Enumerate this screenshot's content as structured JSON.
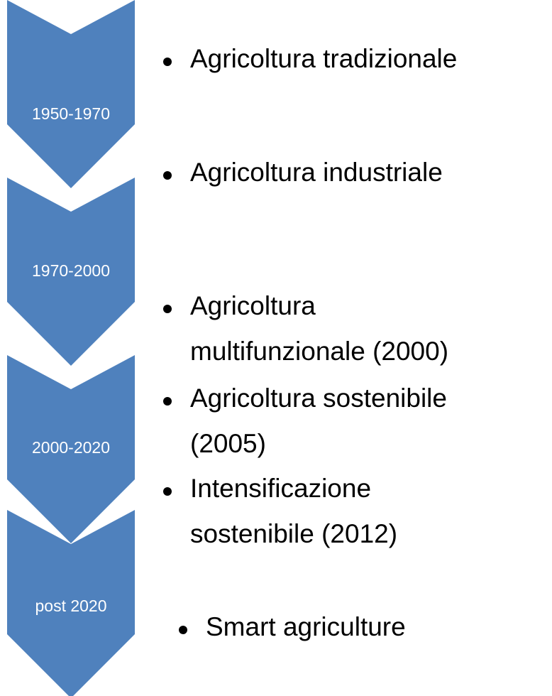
{
  "steps": [
    {
      "label": "1950-1970"
    },
    {
      "label": "1970-2000"
    },
    {
      "label": "2000-2020"
    },
    {
      "label": "post 2020"
    }
  ],
  "items": [
    {
      "lines": [
        "Agricoltura tradizionale"
      ]
    },
    {
      "lines": [
        "Agricoltura industriale"
      ]
    },
    {
      "lines": [
        "Agricoltura",
        "multifunzionale (2000)"
      ]
    },
    {
      "lines": [
        "Agricoltura sostenibile",
        "(2005)"
      ]
    },
    {
      "lines": [
        "Intensificazione",
        "sostenibile (2012)"
      ]
    },
    {
      "lines": [
        "Smart agriculture"
      ]
    }
  ]
}
